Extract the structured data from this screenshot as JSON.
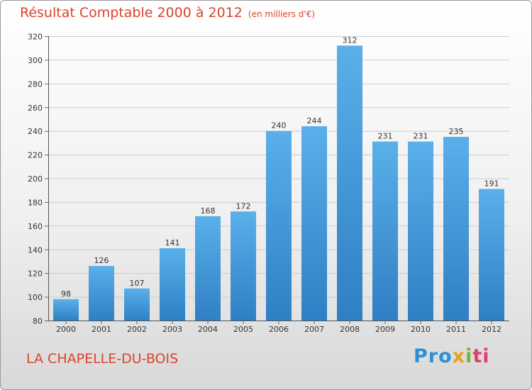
{
  "title": "Résultat Comptable 2000 à 2012",
  "subtitle": "(en milliers d'€)",
  "location": "LA CHAPELLE-DU-BOIS",
  "brand": {
    "p1": "Pro",
    "p2": "x",
    "p3": "i",
    "p4": "ti"
  },
  "colors": {
    "bar": "#3d92d8",
    "bar_light": "#5ab0ea",
    "title": "#d9452a",
    "grid": "#cccccc"
  },
  "chart_data": {
    "type": "bar",
    "title": "Résultat Comptable 2000 à 2012",
    "subtitle": "(en milliers d'€)",
    "xlabel": "",
    "ylabel": "",
    "categories": [
      "2000",
      "2001",
      "2002",
      "2003",
      "2004",
      "2005",
      "2006",
      "2007",
      "2008",
      "2009",
      "2010",
      "2011",
      "2012"
    ],
    "values": [
      98,
      126,
      107,
      141,
      168,
      172,
      240,
      244,
      312,
      231,
      231,
      235,
      191
    ],
    "ylim": [
      80,
      320
    ],
    "yticks": [
      80,
      100,
      120,
      140,
      160,
      180,
      200,
      220,
      240,
      260,
      280,
      300,
      320
    ],
    "grid": true,
    "legend": "none"
  }
}
